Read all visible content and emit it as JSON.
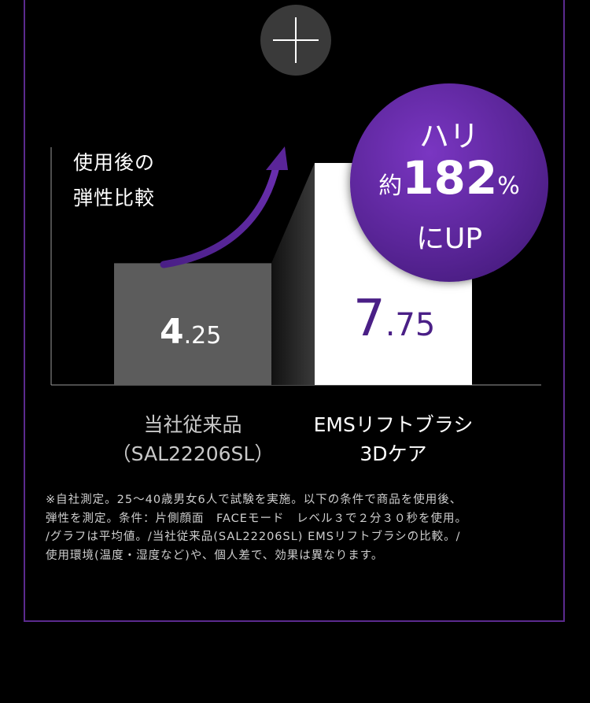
{
  "chart_data": {
    "type": "bar",
    "ylabel": [
      "使用後の",
      "弾性比較"
    ],
    "categories": [
      [
        "当社従来品",
        "（SAL22206SL）"
      ],
      [
        "EMSリフトブラシ",
        "3Dケア"
      ]
    ],
    "values": [
      4.25,
      7.75
    ],
    "value_labels": [
      {
        "int": "4",
        "dec": ".25"
      },
      {
        "int": "7",
        "dec": ".75"
      }
    ],
    "bar_colors": [
      "#5c5c5c",
      "#ffffff"
    ],
    "ylim": [
      0,
      8.3
    ],
    "grid": false
  },
  "badge": {
    "line1": "ハリ",
    "prefix": "約",
    "number": "182",
    "suffix": "%",
    "line3": "にUP",
    "color": "#5a2598"
  },
  "footnote": [
    "※自社測定。25〜40歳男女6人で試験を実施。以下の条件で商品を使用後、",
    "弾性を測定。条件：片側顔面　FACEモード　レベル３で２分３０秒を使用。",
    "/グラフは平均値。/当社従来品(SAL22206SL) EMSリフトブラシの比較。/",
    "使用環境(温度・湿度など)や、個人差で、効果は異なります。"
  ],
  "colors": {
    "accent": "#5b2a8e",
    "background": "#000000"
  }
}
